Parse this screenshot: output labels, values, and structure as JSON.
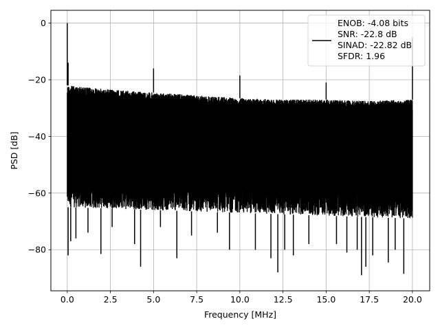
{
  "chart_data": {
    "type": "line",
    "xlabel": "Frequency [MHz]",
    "ylabel": "PSD [dB]",
    "xlim": [
      -0.95,
      21.0
    ],
    "ylim": [
      -94.5,
      4.5
    ],
    "x_ticks": [
      0.0,
      2.5,
      5.0,
      7.5,
      10.0,
      12.5,
      15.0,
      17.5,
      20.0
    ],
    "x_tick_labels": [
      "0.0",
      "2.5",
      "5.0",
      "7.5",
      "10.0",
      "12.5",
      "15.0",
      "17.5",
      "20.0"
    ],
    "y_ticks": [
      0,
      -20,
      -40,
      -60,
      -80
    ],
    "y_tick_labels": [
      "0",
      "−20",
      "−40",
      "−60",
      "−80"
    ],
    "grid": true,
    "legend_position": "top-right",
    "series": [
      {
        "name": "ENOB: -4.08 bits\nSNR: -22.8 dB\nSINAD: -22.82 dB\nSFDR: 1.96",
        "legend_lines": [
          "ENOB: -4.08 bits",
          "SNR: -22.8 dB",
          "SINAD: -22.82 dB",
          "SFDR: 1.96"
        ],
        "color": "#000000",
        "x_range": [
          0.0,
          20.0
        ],
        "noise_top_envelope": [
          [
            0.0,
            -22
          ],
          [
            2.5,
            -23.5
          ],
          [
            5.0,
            -24.5
          ],
          [
            7.5,
            -25.5
          ],
          [
            10.0,
            -26.5
          ],
          [
            12.5,
            -27
          ],
          [
            15.0,
            -27
          ],
          [
            17.5,
            -27.5
          ],
          [
            20.0,
            -27
          ]
        ],
        "noise_bottom_envelope": [
          [
            0.0,
            -65
          ],
          [
            5.0,
            -66
          ],
          [
            10.0,
            -67
          ],
          [
            15.0,
            -68
          ],
          [
            20.0,
            -69
          ]
        ],
        "spikes": [
          {
            "x": 0.0,
            "y": 0
          },
          {
            "x": 0.05,
            "y": -14
          },
          {
            "x": 5.0,
            "y": -16
          },
          {
            "x": 10.0,
            "y": -18.5
          },
          {
            "x": 15.0,
            "y": -21
          },
          {
            "x": 20.0,
            "y": -5
          }
        ],
        "dips": [
          {
            "x": 0.05,
            "y": -82
          },
          {
            "x": 0.2,
            "y": -77
          },
          {
            "x": 0.5,
            "y": -76
          },
          {
            "x": 1.2,
            "y": -74
          },
          {
            "x": 1.95,
            "y": -81.5
          },
          {
            "x": 2.6,
            "y": -72
          },
          {
            "x": 3.9,
            "y": -78
          },
          {
            "x": 4.25,
            "y": -86
          },
          {
            "x": 5.4,
            "y": -72
          },
          {
            "x": 6.35,
            "y": -83
          },
          {
            "x": 7.2,
            "y": -75
          },
          {
            "x": 8.7,
            "y": -74
          },
          {
            "x": 9.4,
            "y": -80
          },
          {
            "x": 10.9,
            "y": -80
          },
          {
            "x": 11.8,
            "y": -83
          },
          {
            "x": 12.2,
            "y": -88
          },
          {
            "x": 12.6,
            "y": -80
          },
          {
            "x": 13.1,
            "y": -82
          },
          {
            "x": 14.0,
            "y": -78
          },
          {
            "x": 15.6,
            "y": -78
          },
          {
            "x": 16.2,
            "y": -81
          },
          {
            "x": 16.8,
            "y": -80
          },
          {
            "x": 17.05,
            "y": -89
          },
          {
            "x": 17.3,
            "y": -86
          },
          {
            "x": 17.7,
            "y": -82
          },
          {
            "x": 18.6,
            "y": -84.5
          },
          {
            "x": 19.0,
            "y": -80
          },
          {
            "x": 19.5,
            "y": -88.5
          }
        ]
      }
    ]
  }
}
